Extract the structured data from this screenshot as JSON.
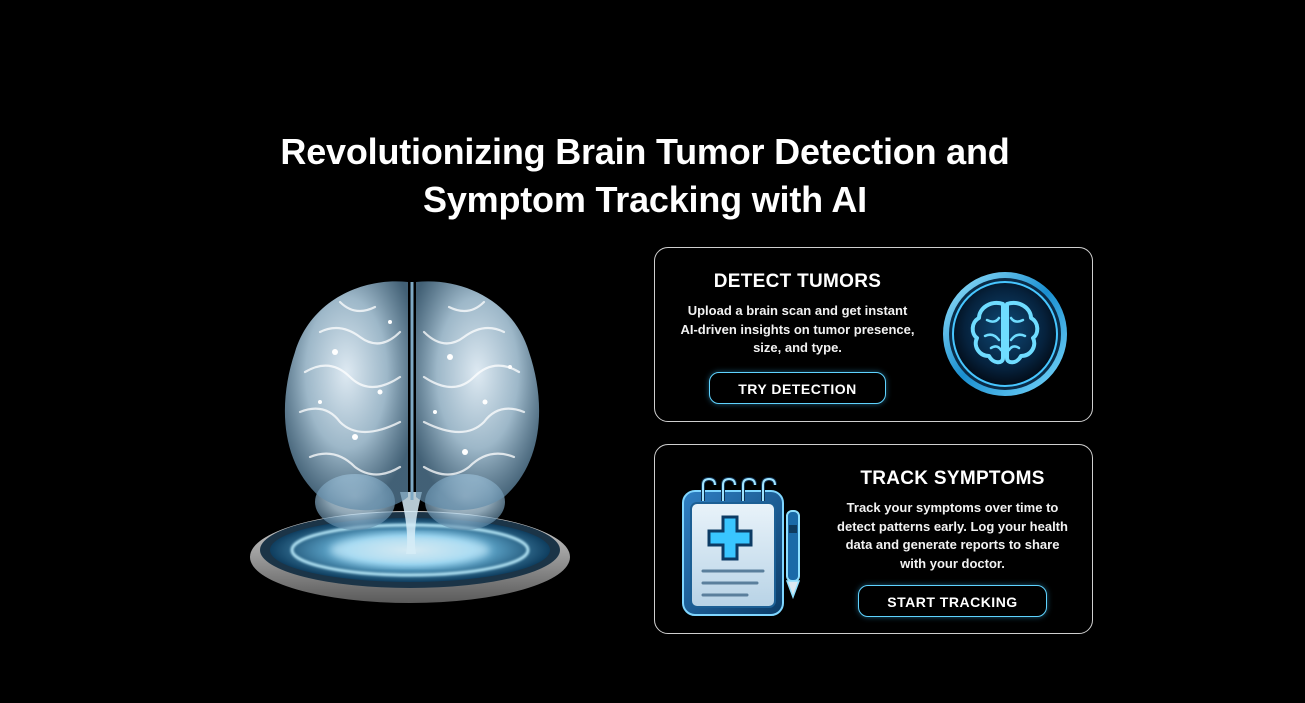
{
  "hero": {
    "title_line1": "Revolutionizing Brain Tumor Detection and",
    "title_line2": "Symptom Tracking with AI"
  },
  "illustration": {
    "icon": "holographic-brain-icon",
    "glow_color": "#46c8ff"
  },
  "cards": {
    "detect": {
      "title": "DETECT TUMORS",
      "description_line1": "Upload a brain scan and get instant",
      "description_line2": "AI-driven insights on tumor presence,",
      "description_line3": "size, and type.",
      "button_label": "TRY DETECTION",
      "icon": "brain-circle-icon"
    },
    "track": {
      "title": "TRACK SYMPTOMS",
      "description_line1": "Track your symptoms over time to",
      "description_line2": "detect patterns early. Log your health",
      "description_line3": "data and generate reports to share",
      "description_line4": "with your doctor.",
      "button_label": "START TRACKING",
      "icon": "medical-notepad-icon"
    }
  },
  "colors": {
    "background": "#000000",
    "accent": "#46c8ff",
    "card_border": "#cfcfcf"
  }
}
